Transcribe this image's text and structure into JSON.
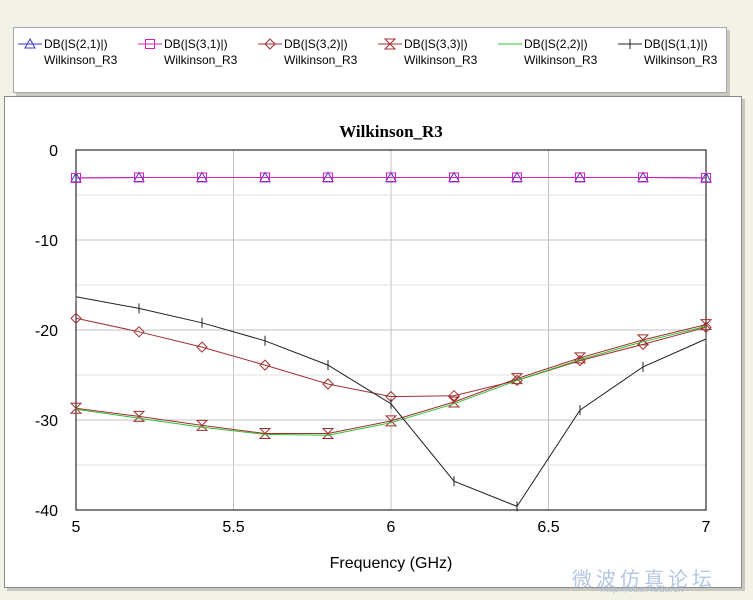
{
  "colors": {
    "background": "#f2f2e6",
    "grid": "#c0c0c0",
    "s21": "#3a3acc",
    "s31": "#d020c0",
    "s32": "#a03030",
    "s33": "#a03030",
    "s22": "#30c030",
    "s11": "#202020"
  },
  "legend": [
    {
      "line1": "DB(|S(2,1)|)",
      "line2": "Wilkinson_R3",
      "marker": "triangle",
      "color": "#3a3acc"
    },
    {
      "line1": "DB(|S(3,1)|)",
      "line2": "Wilkinson_R3",
      "marker": "square",
      "color": "#d020c0"
    },
    {
      "line1": "DB(|S(3,2)|)",
      "line2": "Wilkinson_R3",
      "marker": "diamond",
      "color": "#a03030"
    },
    {
      "line1": "DB(|S(3,3)|)",
      "line2": "Wilkinson_R3",
      "marker": "hourglass",
      "color": "#a03030"
    },
    {
      "line1": "DB(|S(2,2)|)",
      "line2": "Wilkinson_R3",
      "marker": "none",
      "color": "#30c030"
    },
    {
      "line1": "DB(|S(1,1)|)",
      "line2": "Wilkinson_R3",
      "marker": "plus",
      "color": "#202020"
    }
  ],
  "watermark": {
    "line1": "微波仿真论坛",
    "line2": "http://bbs.rfeda.cn"
  },
  "chart_data": {
    "type": "line",
    "title": "Wilkinson_R3",
    "xlabel": "Frequency (GHz)",
    "ylabel": "",
    "xlim": [
      5,
      7
    ],
    "ylim": [
      -40,
      0
    ],
    "xticks": [
      "5",
      "5.5",
      "6",
      "6.5",
      "7"
    ],
    "yticks": [
      "0",
      "-10",
      "-20",
      "-30",
      "-40"
    ],
    "grid": true,
    "series": [
      {
        "name": "DB(|S(2,1)|) Wilkinson_R3",
        "marker": "triangle",
        "color": "#3a3acc",
        "x": [
          5,
          5.2,
          5.4,
          5.6,
          5.8,
          6,
          6.2,
          6.4,
          6.6,
          6.8,
          7
        ],
        "y": [
          -3.1,
          -3.05,
          -3.05,
          -3.05,
          -3.05,
          -3.05,
          -3.05,
          -3.05,
          -3.05,
          -3.05,
          -3.1
        ]
      },
      {
        "name": "DB(|S(3,1)|) Wilkinson_R3",
        "marker": "square",
        "color": "#d020c0",
        "x": [
          5,
          5.2,
          5.4,
          5.6,
          5.8,
          6,
          6.2,
          6.4,
          6.6,
          6.8,
          7
        ],
        "y": [
          -3.1,
          -3.05,
          -3.05,
          -3.05,
          -3.05,
          -3.05,
          -3.05,
          -3.05,
          -3.05,
          -3.05,
          -3.1
        ]
      },
      {
        "name": "DB(|S(3,2)|) Wilkinson_R3",
        "marker": "diamond",
        "color": "#a03030",
        "x": [
          5,
          5.2,
          5.4,
          5.6,
          5.8,
          6,
          6.2,
          6.4,
          6.6,
          6.8,
          7
        ],
        "y": [
          -18.7,
          -20.2,
          -21.9,
          -23.9,
          -26.0,
          -27.4,
          -27.3,
          -25.6,
          -23.4,
          -21.6,
          -19.7
        ]
      },
      {
        "name": "DB(|S(3,3)|) Wilkinson_R3",
        "marker": "hourglass",
        "color": "#a03030",
        "x": [
          5,
          5.2,
          5.4,
          5.6,
          5.8,
          6,
          6.2,
          6.4,
          6.6,
          6.8,
          7
        ],
        "y": [
          -28.7,
          -29.6,
          -30.6,
          -31.5,
          -31.5,
          -30.1,
          -28.0,
          -25.4,
          -23.1,
          -21.1,
          -19.4
        ]
      },
      {
        "name": "DB(|S(2,2)|) Wilkinson_R3",
        "marker": "none",
        "color": "#30c030",
        "x": [
          5,
          5.2,
          5.4,
          5.6,
          5.8,
          6,
          6.2,
          6.4,
          6.6,
          6.8,
          7
        ],
        "y": [
          -28.8,
          -29.8,
          -30.8,
          -31.6,
          -31.7,
          -30.3,
          -28.2,
          -25.6,
          -23.3,
          -21.3,
          -19.6
        ]
      },
      {
        "name": "DB(|S(1,1)|) Wilkinson_R3",
        "marker": "plus",
        "color": "#202020",
        "x": [
          5,
          5.2,
          5.4,
          5.6,
          5.8,
          6,
          6.2,
          6.4,
          6.6,
          6.8,
          7
        ],
        "y": [
          -16.3,
          -17.6,
          -19.2,
          -21.2,
          -23.9,
          -28.2,
          -36.8,
          -39.6,
          -28.9,
          -24.1,
          -21.0
        ]
      }
    ]
  }
}
